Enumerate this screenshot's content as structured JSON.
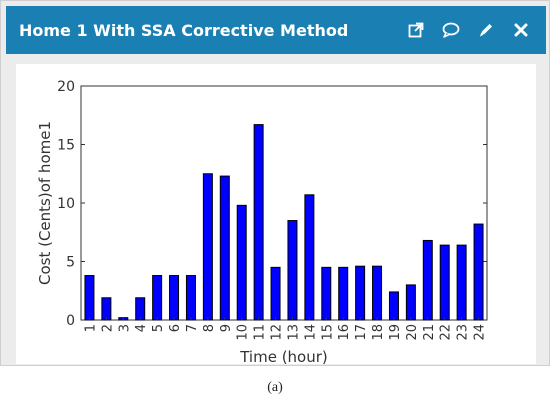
{
  "window": {
    "title": "Home 1 With SSA Corrective Method"
  },
  "toolbar": {
    "icons": [
      "external-link-icon",
      "comment-icon",
      "pencil-icon",
      "close-icon"
    ]
  },
  "caption": "(a)",
  "colors": {
    "titlebar": "#1a7fb3",
    "bar": "#0000ff"
  },
  "chart_data": {
    "type": "bar",
    "categories": [
      "1",
      "2",
      "3",
      "4",
      "5",
      "6",
      "7",
      "8",
      "9",
      "10",
      "11",
      "12",
      "13",
      "14",
      "15",
      "16",
      "17",
      "18",
      "19",
      "20",
      "21",
      "22",
      "23",
      "24"
    ],
    "values": [
      3.8,
      1.9,
      0.2,
      1.9,
      3.8,
      3.8,
      3.8,
      12.5,
      12.3,
      9.8,
      16.7,
      4.5,
      8.5,
      10.7,
      4.5,
      4.5,
      4.6,
      4.6,
      2.4,
      3.0,
      6.8,
      6.4,
      6.4,
      8.2
    ],
    "xlabel": "Time (hour)",
    "ylabel": "Cost (Cents)of home1",
    "ylim": [
      0,
      20
    ],
    "yticks": [
      0,
      5,
      10,
      15,
      20
    ],
    "grid": false
  }
}
